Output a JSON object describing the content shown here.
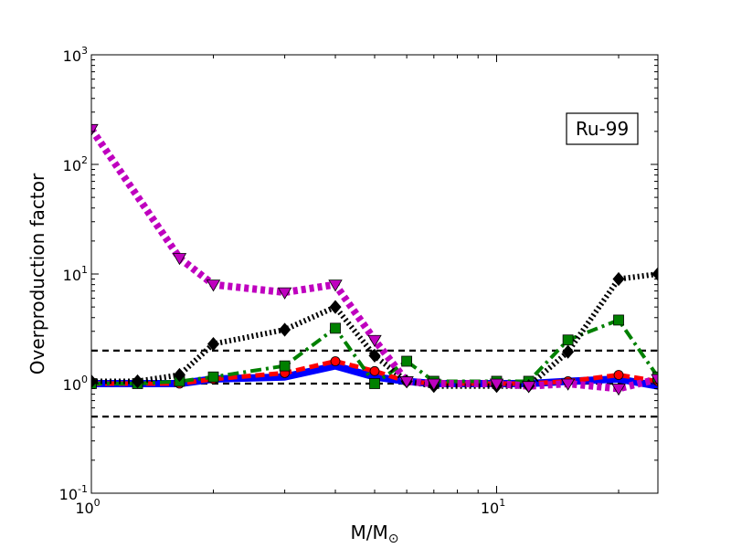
{
  "chart_data": {
    "type": "line",
    "title": "",
    "xlabel": "M/M",
    "xlabel_sub": "⊙",
    "ylabel": "Overproduction factor",
    "x_scale": "log",
    "y_scale": "log",
    "xlim": [
      1,
      25
    ],
    "ylim": [
      0.1,
      1000
    ],
    "x_ticks": [
      {
        "value": 1,
        "base": "10",
        "exp": "0"
      },
      {
        "value": 10,
        "base": "10",
        "exp": "1"
      }
    ],
    "y_ticks": [
      {
        "value": 0.1,
        "base": "10",
        "exp": "-1"
      },
      {
        "value": 1,
        "base": "10",
        "exp": "0"
      },
      {
        "value": 10,
        "base": "10",
        "exp": "1"
      },
      {
        "value": 100,
        "base": "10",
        "exp": "2"
      },
      {
        "value": 1000,
        "base": "10",
        "exp": "3"
      }
    ],
    "grid": false,
    "annotation": "Ru-99",
    "reference_lines": [
      0.5,
      1,
      2
    ],
    "series": [
      {
        "color": "#0000ff",
        "line": "solid",
        "marker": "none",
        "x": [
          1,
          1.3,
          1.65,
          2,
          3,
          4,
          5,
          6,
          7,
          10,
          12,
          15,
          20,
          25
        ],
        "y": [
          1.0,
          1.0,
          1.0,
          1.1,
          1.15,
          1.45,
          1.15,
          1.05,
          1.0,
          1.0,
          1.0,
          1.05,
          1.1,
          0.95
        ]
      },
      {
        "color": "#ff0000",
        "line": "dashed",
        "marker": "circle",
        "x": [
          1,
          1.3,
          1.65,
          2,
          3,
          4,
          5,
          6,
          7,
          10,
          12,
          15,
          20,
          25
        ],
        "y": [
          1.0,
          1.0,
          1.0,
          1.1,
          1.25,
          1.6,
          1.3,
          1.05,
          1.0,
          1.0,
          1.0,
          1.05,
          1.2,
          1.05
        ]
      },
      {
        "color": "#008000",
        "line": "dashdot",
        "marker": "square",
        "x": [
          1,
          1.3,
          1.65,
          2,
          3,
          4,
          5,
          6,
          7,
          10,
          12,
          15,
          20,
          25
        ],
        "y": [
          1.0,
          1.0,
          1.05,
          1.15,
          1.45,
          3.2,
          1.0,
          1.6,
          1.05,
          1.05,
          1.05,
          2.5,
          3.8,
          1.15
        ]
      },
      {
        "color": "#000000",
        "line": "dotted",
        "marker": "diamond",
        "x": [
          1,
          1.3,
          1.65,
          2,
          3,
          4,
          5,
          6,
          7,
          10,
          12,
          15,
          20,
          25
        ],
        "y": [
          1.05,
          1.05,
          1.2,
          2.3,
          3.1,
          5.0,
          1.8,
          1.05,
          0.95,
          0.95,
          0.95,
          1.95,
          9.0,
          10.0
        ]
      },
      {
        "color": "#bf00bf",
        "line": "dotted",
        "marker": "triangle-down",
        "x": [
          1,
          1.65,
          2,
          3,
          4,
          5,
          6,
          7,
          10,
          12,
          15,
          20,
          25
        ],
        "y": [
          210,
          14,
          8.0,
          6.8,
          8.0,
          2.5,
          1.05,
          1.0,
          1.0,
          0.95,
          1.0,
          0.9,
          1.1
        ]
      }
    ]
  }
}
